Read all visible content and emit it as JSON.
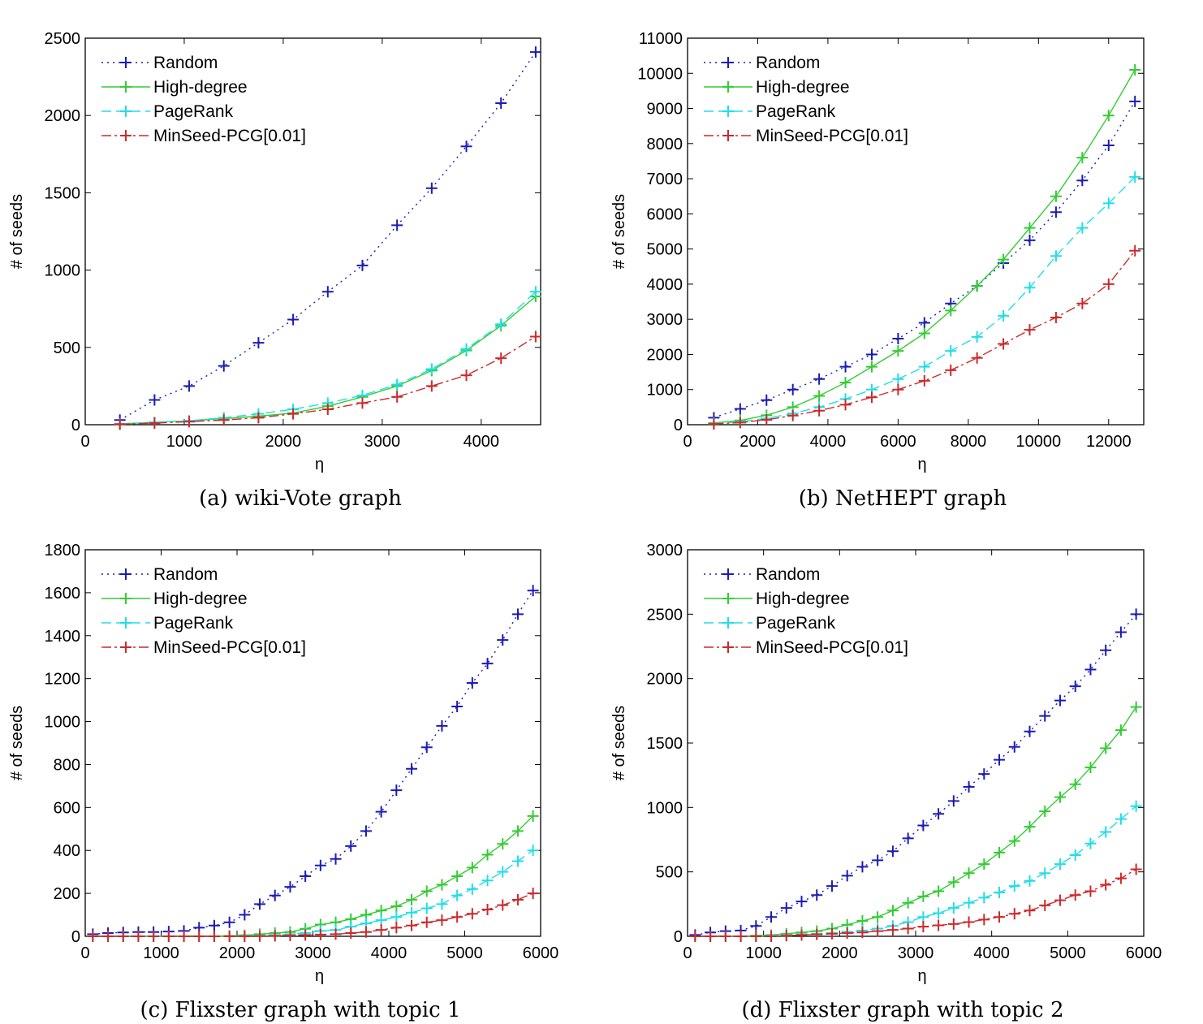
{
  "figure": {
    "series_styles": {
      "random": {
        "color": "#1c1cb4",
        "dash": "2,5"
      },
      "high_degree": {
        "color": "#33cc33",
        "dash": ""
      },
      "pagerank": {
        "color": "#22dde8",
        "dash": "12,6"
      },
      "minseed": {
        "color": "#cc2a2a",
        "dash": "12,4,3,4"
      }
    }
  },
  "chart_data": [
    {
      "type": "line",
      "title": "",
      "caption": "(a) wiki-Vote graph",
      "xlabel": "η",
      "ylabel": "# of seeds",
      "xlim": [
        0,
        4600
      ],
      "ylim": [
        0,
        2500
      ],
      "xticks": [
        0,
        1000,
        2000,
        3000,
        4000
      ],
      "yticks": [
        0,
        500,
        1000,
        1500,
        2000,
        2500
      ],
      "legend": "top-left",
      "x": [
        350,
        700,
        1050,
        1400,
        1750,
        2100,
        2450,
        2800,
        3150,
        3500,
        3850,
        4200,
        4550
      ],
      "series": [
        {
          "key": "random",
          "name": "Random",
          "values": [
            30,
            160,
            250,
            380,
            530,
            680,
            860,
            1030,
            1290,
            1530,
            1800,
            2080,
            2410
          ]
        },
        {
          "key": "high_degree",
          "name": "High-degree",
          "values": [
            5,
            15,
            25,
            40,
            55,
            75,
            120,
            180,
            250,
            350,
            480,
            640,
            830
          ]
        },
        {
          "key": "pagerank",
          "name": "PageRank",
          "values": [
            5,
            15,
            25,
            45,
            70,
            100,
            140,
            190,
            260,
            360,
            490,
            650,
            860
          ]
        },
        {
          "key": "minseed",
          "name": "MinSeed-PCG[0.01]",
          "values": [
            3,
            10,
            20,
            30,
            45,
            70,
            100,
            140,
            180,
            250,
            320,
            430,
            570
          ]
        }
      ]
    },
    {
      "type": "line",
      "title": "",
      "caption": "(b) NetHEPT graph",
      "xlabel": "η",
      "ylabel": "# of seeds",
      "xlim": [
        0,
        13000
      ],
      "ylim": [
        0,
        11000
      ],
      "xticks": [
        0,
        2000,
        4000,
        6000,
        8000,
        10000,
        12000
      ],
      "yticks": [
        0,
        1000,
        2000,
        3000,
        4000,
        5000,
        6000,
        7000,
        8000,
        9000,
        10000,
        11000
      ],
      "legend": "top-left",
      "x": [
        750,
        1500,
        2250,
        3000,
        3750,
        4500,
        5250,
        6000,
        6750,
        7500,
        8250,
        9000,
        9750,
        10500,
        11250,
        12000,
        12750
      ],
      "series": [
        {
          "key": "random",
          "name": "Random",
          "values": [
            200,
            450,
            700,
            1000,
            1300,
            1650,
            2000,
            2450,
            2900,
            3450,
            3950,
            4600,
            5250,
            6050,
            6950,
            7950,
            9200
          ]
        },
        {
          "key": "high_degree",
          "name": "High-degree",
          "values": [
            50,
            120,
            270,
            500,
            820,
            1200,
            1650,
            2100,
            2600,
            3250,
            3950,
            4700,
            5600,
            6500,
            7600,
            8800,
            10100
          ]
        },
        {
          "key": "pagerank",
          "name": "PageRank",
          "values": [
            30,
            80,
            180,
            320,
            500,
            730,
            1000,
            1300,
            1650,
            2100,
            2500,
            3100,
            3900,
            4800,
            5600,
            6300,
            7050
          ]
        },
        {
          "key": "minseed",
          "name": "MinSeed-PCG[0.01]",
          "values": [
            20,
            60,
            140,
            260,
            400,
            570,
            780,
            1000,
            1250,
            1550,
            1900,
            2300,
            2700,
            3050,
            3450,
            4000,
            4950
          ]
        }
      ]
    },
    {
      "type": "line",
      "title": "",
      "caption": "(c) Flixster graph with topic 1",
      "xlabel": "η",
      "ylabel": "# of seeds",
      "xlim": [
        0,
        6000
      ],
      "ylim": [
        0,
        1800
      ],
      "xticks": [
        0,
        1000,
        2000,
        3000,
        4000,
        5000,
        6000
      ],
      "yticks": [
        0,
        200,
        400,
        600,
        800,
        1000,
        1200,
        1400,
        1600,
        1800
      ],
      "legend": "top-left",
      "x": [
        100,
        300,
        500,
        700,
        900,
        1100,
        1300,
        1500,
        1700,
        1900,
        2100,
        2300,
        2500,
        2700,
        2900,
        3100,
        3300,
        3500,
        3700,
        3900,
        4100,
        4300,
        4500,
        4700,
        4900,
        5100,
        5300,
        5500,
        5700,
        5900
      ],
      "series": [
        {
          "key": "random",
          "name": "Random",
          "values": [
            10,
            15,
            18,
            20,
            20,
            22,
            25,
            40,
            50,
            65,
            100,
            150,
            190,
            230,
            280,
            330,
            360,
            420,
            490,
            580,
            680,
            780,
            880,
            980,
            1070,
            1180,
            1270,
            1380,
            1500,
            1610
          ]
        },
        {
          "key": "high_degree",
          "name": "High-degree",
          "values": [
            0,
            0,
            0,
            0,
            0,
            0,
            0,
            0,
            0,
            2,
            5,
            10,
            15,
            20,
            35,
            55,
            65,
            80,
            100,
            120,
            140,
            170,
            210,
            240,
            280,
            320,
            380,
            430,
            490,
            560
          ]
        },
        {
          "key": "pagerank",
          "name": "PageRank",
          "values": [
            0,
            0,
            0,
            0,
            0,
            0,
            0,
            0,
            0,
            0,
            2,
            4,
            6,
            10,
            15,
            25,
            30,
            45,
            60,
            75,
            90,
            110,
            130,
            150,
            190,
            220,
            260,
            300,
            350,
            400
          ]
        },
        {
          "key": "minseed",
          "name": "MinSeed-PCG[0.01]",
          "values": [
            0,
            0,
            0,
            0,
            0,
            0,
            0,
            0,
            0,
            0,
            0,
            1,
            2,
            4,
            6,
            8,
            10,
            15,
            20,
            30,
            40,
            50,
            65,
            75,
            90,
            105,
            125,
            145,
            170,
            200
          ]
        }
      ]
    },
    {
      "type": "line",
      "title": "",
      "caption": "(d) Flixster graph with topic 2",
      "xlabel": "η",
      "ylabel": "# of seeds",
      "xlim": [
        0,
        6000
      ],
      "ylim": [
        0,
        3000
      ],
      "xticks": [
        0,
        1000,
        2000,
        3000,
        4000,
        5000,
        6000
      ],
      "yticks": [
        0,
        500,
        1000,
        1500,
        2000,
        2500,
        3000
      ],
      "legend": "top-left",
      "x": [
        100,
        300,
        500,
        700,
        900,
        1100,
        1300,
        1500,
        1700,
        1900,
        2100,
        2300,
        2500,
        2700,
        2900,
        3100,
        3300,
        3500,
        3700,
        3900,
        4100,
        4300,
        4500,
        4700,
        4900,
        5100,
        5300,
        5500,
        5700,
        5900
      ],
      "series": [
        {
          "key": "random",
          "name": "Random",
          "values": [
            10,
            30,
            40,
            45,
            80,
            150,
            220,
            270,
            320,
            390,
            470,
            540,
            590,
            660,
            760,
            860,
            950,
            1050,
            1160,
            1260,
            1370,
            1470,
            1590,
            1710,
            1830,
            1940,
            2070,
            2220,
            2360,
            2500
          ]
        },
        {
          "key": "high_degree",
          "name": "High-degree",
          "values": [
            0,
            0,
            0,
            0,
            5,
            10,
            20,
            30,
            40,
            60,
            90,
            120,
            150,
            200,
            260,
            310,
            350,
            420,
            490,
            560,
            650,
            740,
            850,
            970,
            1080,
            1180,
            1310,
            1460,
            1600,
            1780
          ]
        },
        {
          "key": "pagerank",
          "name": "PageRank",
          "values": [
            0,
            0,
            0,
            0,
            0,
            5,
            10,
            15,
            20,
            25,
            35,
            45,
            60,
            80,
            110,
            150,
            180,
            220,
            260,
            300,
            340,
            390,
            430,
            490,
            560,
            630,
            720,
            810,
            910,
            1010
          ]
        },
        {
          "key": "minseed",
          "name": "MinSeed-PCG[0.01]",
          "values": [
            0,
            0,
            0,
            0,
            0,
            0,
            5,
            10,
            15,
            20,
            25,
            30,
            40,
            50,
            60,
            75,
            85,
            95,
            110,
            130,
            150,
            175,
            200,
            240,
            280,
            320,
            350,
            400,
            450,
            520
          ]
        }
      ]
    }
  ]
}
